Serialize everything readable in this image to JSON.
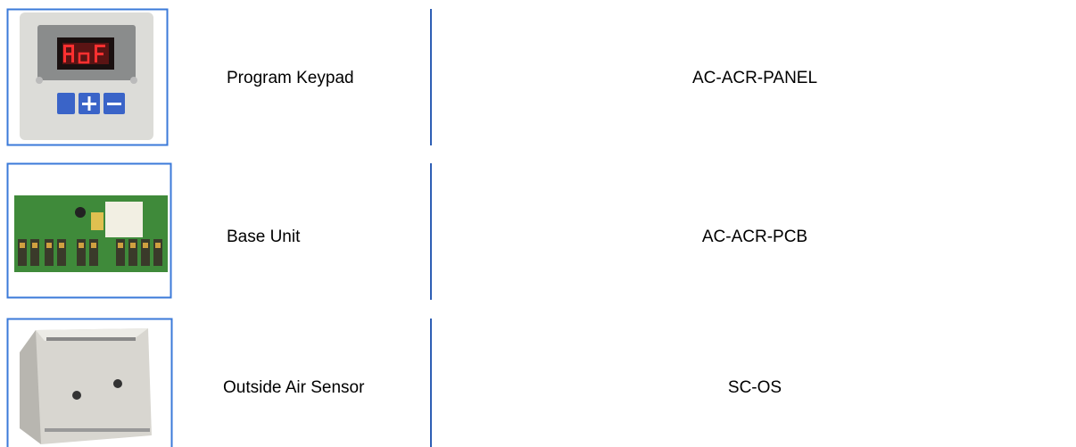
{
  "rows": [
    {
      "name": "Program Keypad",
      "code": "AC-ACR-PANEL"
    },
    {
      "name": "Base Unit",
      "code": "AC-ACR-PCB"
    },
    {
      "name": "Outside Air Sensor",
      "code": "SC-OS"
    }
  ]
}
